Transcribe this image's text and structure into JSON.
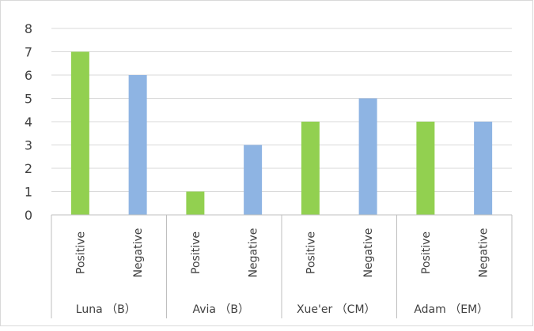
{
  "chart_data": {
    "type": "bar",
    "title": "",
    "xlabel": "",
    "ylabel": "",
    "ylim": [
      0,
      8
    ],
    "yticks": [
      0,
      1,
      2,
      3,
      4,
      5,
      6,
      7,
      8
    ],
    "grid": true,
    "legend": "none",
    "groups": [
      {
        "label": "Luna （B）",
        "bars": [
          {
            "category": "Positive",
            "value": 7,
            "color": "#92d050"
          },
          {
            "category": "Negative",
            "value": 6,
            "color": "#8eb4e3"
          }
        ]
      },
      {
        "label": "Avia （B）",
        "bars": [
          {
            "category": "Positive",
            "value": 1,
            "color": "#92d050"
          },
          {
            "category": "Negative",
            "value": 3,
            "color": "#8eb4e3"
          }
        ]
      },
      {
        "label": "Xue'er （CM）",
        "bars": [
          {
            "category": "Positive",
            "value": 4,
            "color": "#92d050"
          },
          {
            "category": "Negative",
            "value": 5,
            "color": "#8eb4e3"
          }
        ]
      },
      {
        "label": "Adam （EM）",
        "bars": [
          {
            "category": "Positive",
            "value": 4,
            "color": "#92d050"
          },
          {
            "category": "Negative",
            "value": 4,
            "color": "#8eb4e3"
          }
        ]
      }
    ]
  }
}
